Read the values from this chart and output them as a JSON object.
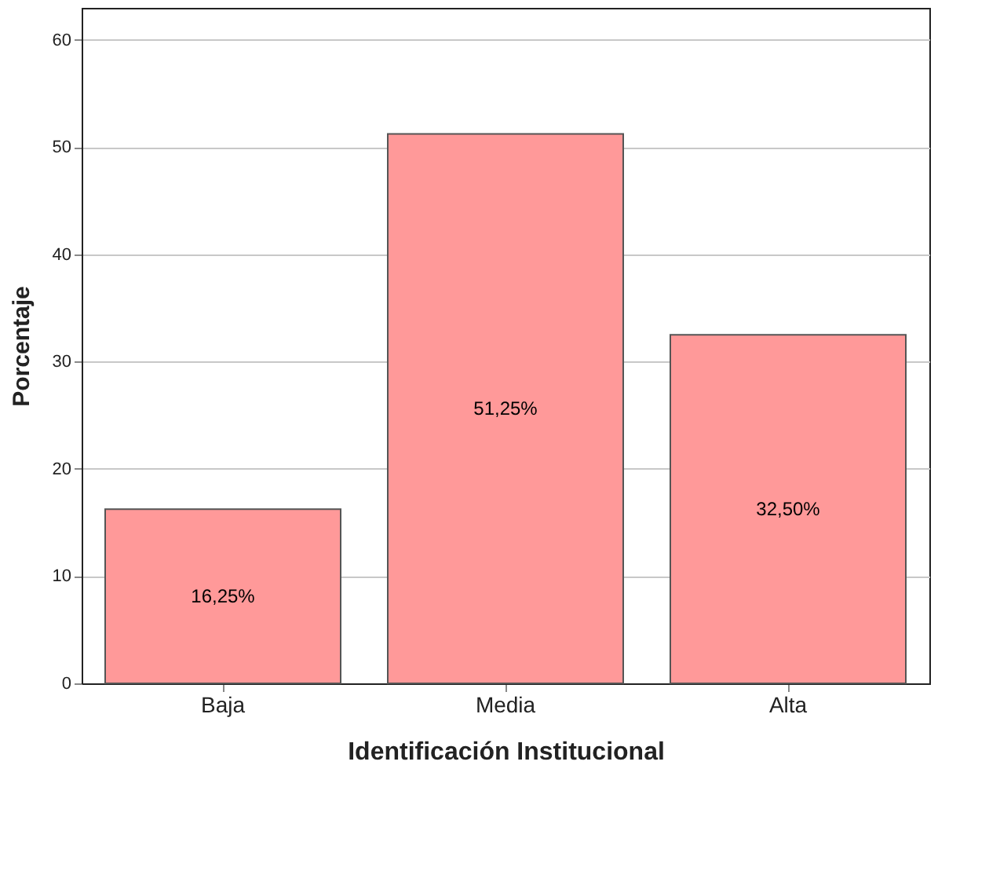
{
  "chart_data": {
    "type": "bar",
    "xlabel": "Identificación Institucional",
    "ylabel": "Porcentaje",
    "categories": [
      "Baja",
      "Media",
      "Alta"
    ],
    "values": [
      16.25,
      51.25,
      32.5
    ],
    "value_labels": [
      "16,25%",
      "51,25%",
      "32,50%"
    ],
    "color": "#ff9999",
    "ylim": [
      0,
      63
    ],
    "yticks": [
      0,
      10,
      20,
      30,
      40,
      50,
      60
    ],
    "grid": "y"
  }
}
